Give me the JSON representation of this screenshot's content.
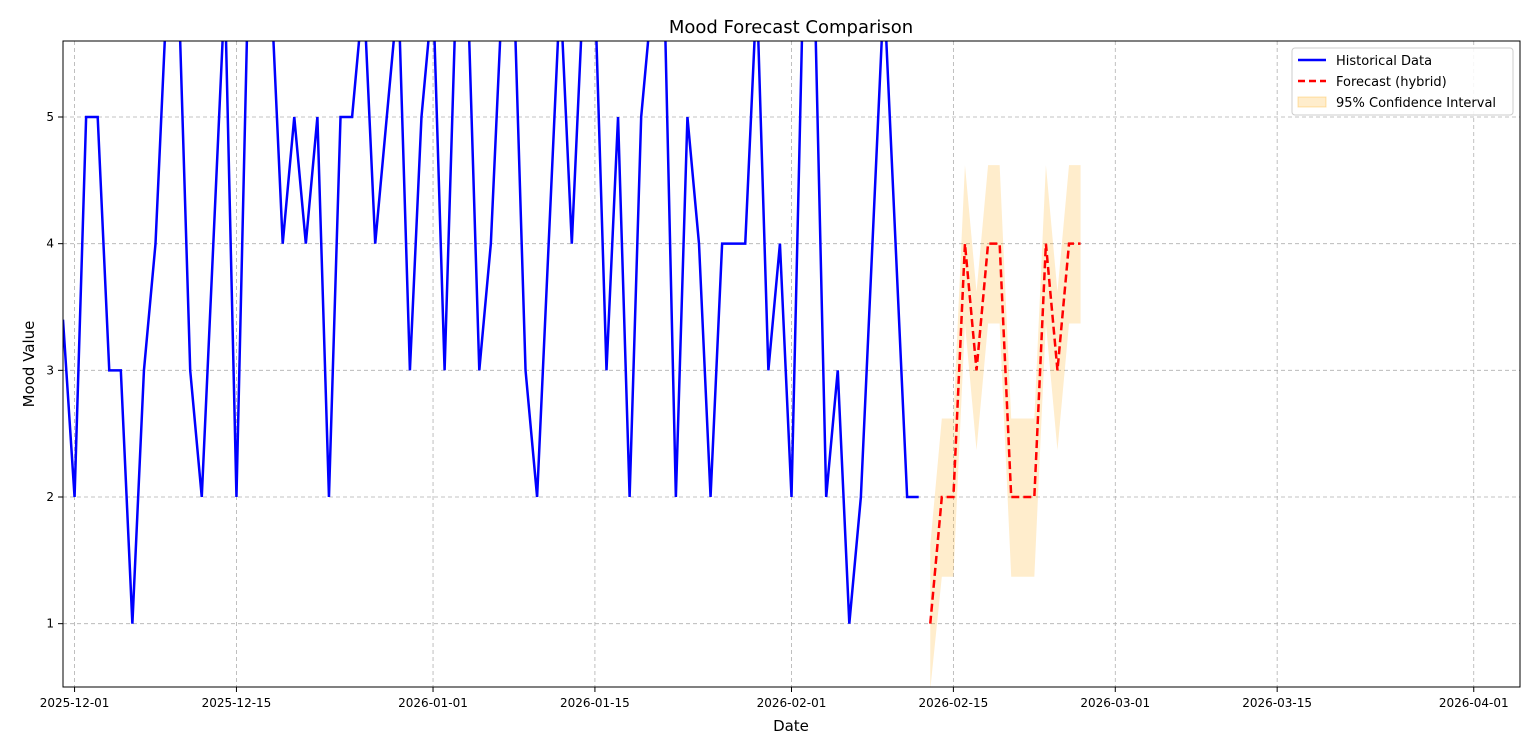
{
  "chart_data": {
    "type": "line",
    "title": "Mood Forecast Comparison",
    "xlabel": "Date",
    "ylabel": "Mood Value",
    "x_ticks": [
      "2025-12-01",
      "2025-12-15",
      "2026-01-01",
      "2026-01-15",
      "2026-02-01",
      "2026-02-15",
      "2026-03-01",
      "2026-03-15",
      "2026-04-01"
    ],
    "y_ticks": [
      1,
      2,
      3,
      4,
      5
    ],
    "xlim": [
      "2025-11-30",
      "2026-04-05"
    ],
    "ylim": [
      0.5,
      5.6
    ],
    "grid": true,
    "legend_position": "top-right",
    "colors": {
      "historical": "#0000ff",
      "forecast": "#ff0000",
      "confidence": "#ffa500"
    },
    "series": [
      {
        "name": "Historical Data",
        "style": "solid",
        "points": [
          [
            "2025-11-30",
            3.4
          ],
          [
            "2025-12-01",
            2
          ],
          [
            "2025-12-02",
            5
          ],
          [
            "2025-12-03",
            5
          ],
          [
            "2025-12-04",
            3
          ],
          [
            "2025-12-05",
            3
          ],
          [
            "2025-12-06",
            1
          ],
          [
            "2025-12-07",
            3
          ],
          [
            "2025-12-08",
            4
          ],
          [
            "2025-12-09",
            6
          ],
          [
            "2025-12-10",
            6
          ],
          [
            "2025-12-11",
            3
          ],
          [
            "2025-12-12",
            2
          ],
          [
            "2025-12-13",
            4
          ],
          [
            "2025-12-14",
            6
          ],
          [
            "2025-12-15",
            2
          ],
          [
            "2025-12-16",
            6
          ],
          [
            "2025-12-17",
            6
          ],
          [
            "2025-12-18",
            6
          ],
          [
            "2025-12-19",
            4
          ],
          [
            "2025-12-20",
            5
          ],
          [
            "2025-12-21",
            4
          ],
          [
            "2025-12-22",
            5
          ],
          [
            "2025-12-23",
            2
          ],
          [
            "2025-12-24",
            5
          ],
          [
            "2025-12-25",
            5
          ],
          [
            "2025-12-26",
            6
          ],
          [
            "2025-12-27",
            4
          ],
          [
            "2025-12-28",
            5
          ],
          [
            "2025-12-29",
            6
          ],
          [
            "2025-12-30",
            3
          ],
          [
            "2025-12-31",
            5
          ],
          [
            "2026-01-01",
            6
          ],
          [
            "2026-01-02",
            3
          ],
          [
            "2026-01-03",
            6
          ],
          [
            "2026-01-04",
            6
          ],
          [
            "2026-01-05",
            3
          ],
          [
            "2026-01-06",
            4
          ],
          [
            "2026-01-07",
            6
          ],
          [
            "2026-01-08",
            6
          ],
          [
            "2026-01-09",
            3
          ],
          [
            "2026-01-10",
            2
          ],
          [
            "2026-01-11",
            4
          ],
          [
            "2026-01-12",
            6
          ],
          [
            "2026-01-13",
            4
          ],
          [
            "2026-01-14",
            6
          ],
          [
            "2026-01-15",
            6
          ],
          [
            "2026-01-16",
            3
          ],
          [
            "2026-01-17",
            5
          ],
          [
            "2026-01-18",
            2
          ],
          [
            "2026-01-19",
            5
          ],
          [
            "2026-01-20",
            6
          ],
          [
            "2026-01-21",
            6
          ],
          [
            "2026-01-22",
            2
          ],
          [
            "2026-01-23",
            5
          ],
          [
            "2026-01-24",
            4
          ],
          [
            "2026-01-25",
            2
          ],
          [
            "2026-01-26",
            4
          ],
          [
            "2026-01-27",
            4
          ],
          [
            "2026-01-28",
            4
          ],
          [
            "2026-01-29",
            6
          ],
          [
            "2026-01-30",
            3
          ],
          [
            "2026-01-31",
            4
          ],
          [
            "2026-02-01",
            2
          ],
          [
            "2026-02-02",
            6
          ],
          [
            "2026-02-03",
            6
          ],
          [
            "2026-02-04",
            2
          ],
          [
            "2026-02-05",
            3
          ],
          [
            "2026-02-06",
            1
          ],
          [
            "2026-02-07",
            2
          ],
          [
            "2026-02-08",
            4
          ],
          [
            "2026-02-09",
            6
          ],
          [
            "2026-02-10",
            4
          ],
          [
            "2026-02-11",
            2
          ],
          [
            "2026-02-12",
            2
          ]
        ]
      },
      {
        "name": "Forecast (hybrid)",
        "style": "dashed",
        "points": [
          [
            "2026-02-13",
            1
          ],
          [
            "2026-02-14",
            2
          ],
          [
            "2026-02-15",
            2
          ],
          [
            "2026-02-16",
            4
          ],
          [
            "2026-02-17",
            3
          ],
          [
            "2026-02-18",
            4
          ],
          [
            "2026-02-19",
            4
          ],
          [
            "2026-02-20",
            2
          ],
          [
            "2026-02-21",
            2
          ],
          [
            "2026-02-22",
            2
          ],
          [
            "2026-02-23",
            4
          ],
          [
            "2026-02-24",
            3
          ],
          [
            "2026-02-25",
            4
          ],
          [
            "2026-02-26",
            4
          ]
        ]
      }
    ],
    "confidence_interval": {
      "name": "95% Confidence Interval",
      "points": [
        [
          "2026-02-13",
          0.48,
          1.62
        ],
        [
          "2026-02-14",
          1.37,
          2.62
        ],
        [
          "2026-02-15",
          1.37,
          2.62
        ],
        [
          "2026-02-16",
          3.37,
          4.62
        ],
        [
          "2026-02-17",
          2.37,
          3.62
        ],
        [
          "2026-02-18",
          3.37,
          4.62
        ],
        [
          "2026-02-19",
          3.37,
          4.62
        ],
        [
          "2026-02-20",
          1.37,
          2.62
        ],
        [
          "2026-02-21",
          1.37,
          2.62
        ],
        [
          "2026-02-22",
          1.37,
          2.62
        ],
        [
          "2026-02-23",
          3.37,
          4.62
        ],
        [
          "2026-02-24",
          2.37,
          3.62
        ],
        [
          "2026-02-25",
          3.37,
          4.62
        ],
        [
          "2026-02-26",
          3.37,
          4.62
        ]
      ]
    }
  }
}
